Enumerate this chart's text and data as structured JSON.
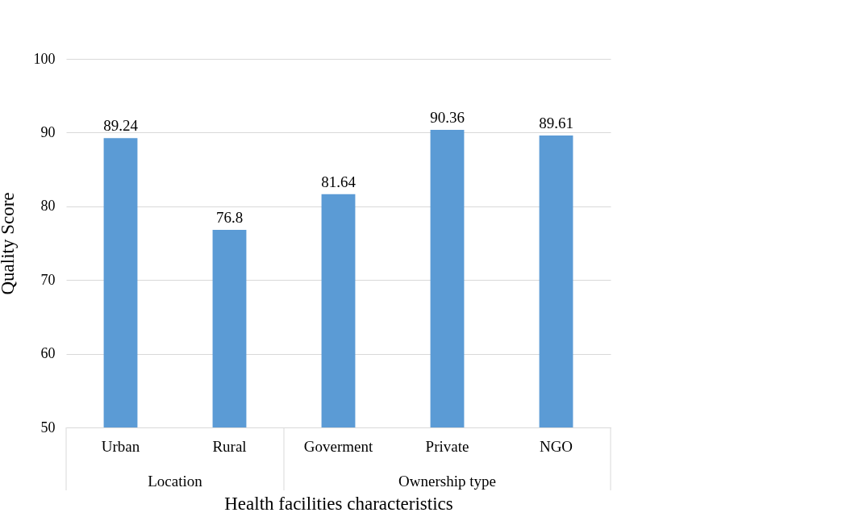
{
  "chart_data": {
    "type": "bar",
    "xlabel": "Health facilities characteristics",
    "ylabel": "Quality Score",
    "categories": [
      "Urban",
      "Rural",
      "Goverment",
      "Private",
      "NGO"
    ],
    "values": [
      89.24,
      76.8,
      81.64,
      90.36,
      89.61
    ],
    "color": "#5b9bd5",
    "ylim": [
      50,
      100
    ],
    "yticks": [
      50,
      60,
      70,
      80,
      90,
      100
    ],
    "grid": "y",
    "data_labels": true,
    "annotations": [
      "Location",
      "Ownership type"
    ]
  }
}
